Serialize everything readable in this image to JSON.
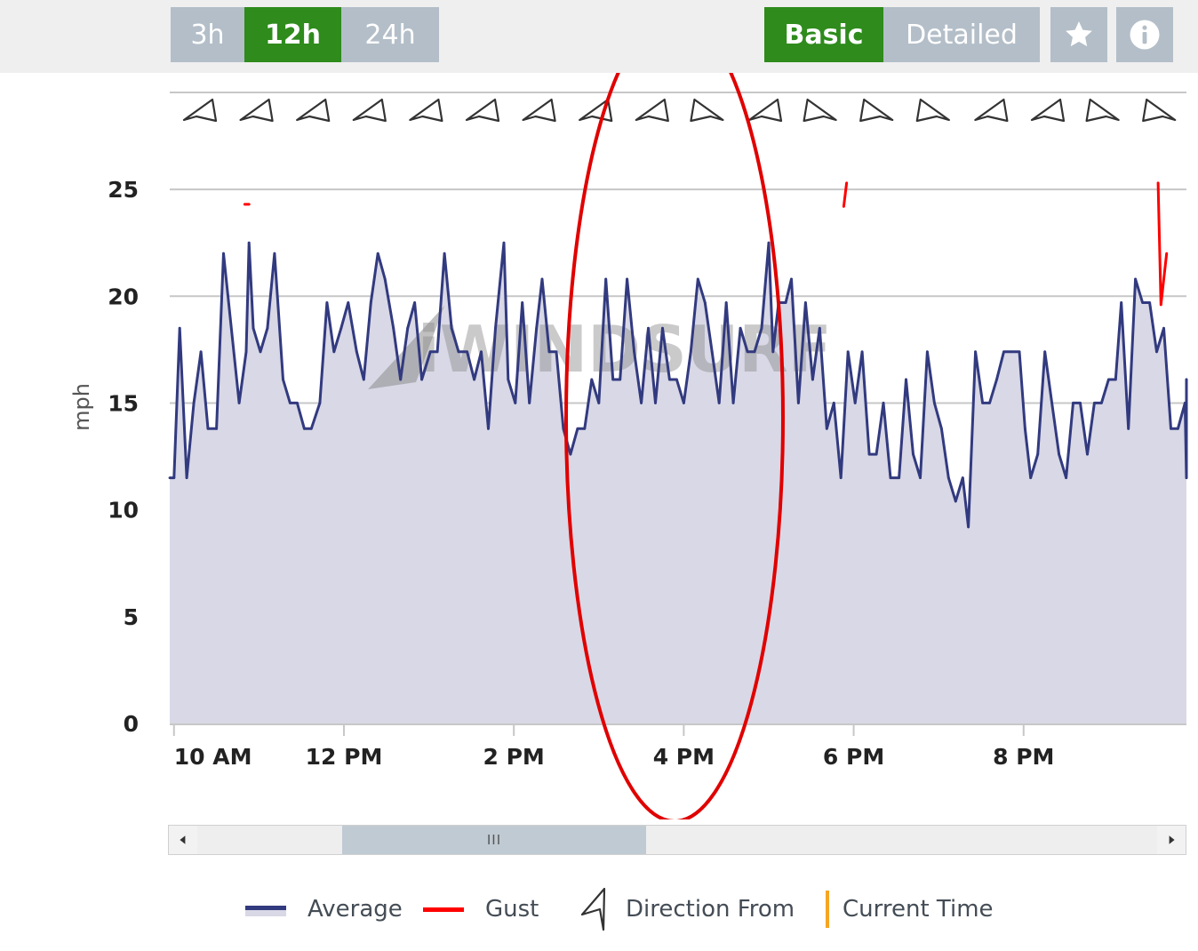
{
  "toolbar": {
    "ranges": [
      "3h",
      "12h",
      "24h"
    ],
    "active_range": "12h",
    "views": [
      "Basic",
      "Detailed"
    ],
    "active_view": "Basic",
    "favorite_icon": "star-icon",
    "info_icon": "info-icon"
  },
  "colors": {
    "active_green": "#2e8b1c",
    "inactive_gray": "#b3bec8",
    "average_line": "#323a7f",
    "area_fill": "#d8d8e6",
    "gust": "#ff0000",
    "current_time": "#f5a623",
    "annotation": "#e00000"
  },
  "watermark": "iWINDSURF",
  "scrollbar": {
    "thumb_grip": "III",
    "left_icon": "arrow-left-icon",
    "right_icon": "arrow-right-icon"
  },
  "legend": {
    "average": "Average",
    "gust": "Gust",
    "direction": "Direction From",
    "current_time": "Current Time"
  },
  "chart_data": {
    "type": "area",
    "ylabel": "mph",
    "y_ticks": [
      0,
      5,
      10,
      15,
      20,
      25
    ],
    "ylim": [
      0,
      27
    ],
    "x_start": "9:57 AM",
    "x_end": "9:55 PM",
    "x_ticks": [
      {
        "time": "10:00 AM",
        "label": "10 AM"
      },
      {
        "time": "12:00 PM",
        "label": "12 PM"
      },
      {
        "time": "2:00 PM",
        "label": "2 PM"
      },
      {
        "time": "4:00 PM",
        "label": "4 PM"
      },
      {
        "time": "6:00 PM",
        "label": "6 PM"
      },
      {
        "time": "8:00 PM",
        "label": "8 PM"
      }
    ],
    "grid": true,
    "series": [
      {
        "name": "Average",
        "points": [
          [
            "9:57 AM",
            11.5
          ],
          [
            "10:00 AM",
            11.5
          ],
          [
            "10:04 AM",
            18.5
          ],
          [
            "10:09 AM",
            11.5
          ],
          [
            "10:14 AM",
            15
          ],
          [
            "10:19 AM",
            17.4
          ],
          [
            "10:24 AM",
            13.8
          ],
          [
            "10:30 AM",
            13.8
          ],
          [
            "10:35 AM",
            22
          ],
          [
            "10:46 AM",
            15
          ],
          [
            "10:51 AM",
            17.4
          ],
          [
            "10:53 AM",
            22.5
          ],
          [
            "10:56 AM",
            18.5
          ],
          [
            "11:01 AM",
            17.4
          ],
          [
            "11:06 AM",
            18.5
          ],
          [
            "11:11 AM",
            22
          ],
          [
            "11:17 AM",
            16.1
          ],
          [
            "11:22 AM",
            15
          ],
          [
            "11:27 AM",
            15
          ],
          [
            "11:32 AM",
            13.8
          ],
          [
            "11:37 AM",
            13.8
          ],
          [
            "11:43 AM",
            15
          ],
          [
            "11:48 AM",
            19.7
          ],
          [
            "11:53 AM",
            17.4
          ],
          [
            "11:58 AM",
            18.5
          ],
          [
            "12:03 PM",
            19.7
          ],
          [
            "12:09 PM",
            17.4
          ],
          [
            "12:14 PM",
            16.1
          ],
          [
            "12:19 PM",
            19.7
          ],
          [
            "12:24 PM",
            22
          ],
          [
            "12:29 PM",
            20.8
          ],
          [
            "12:35 PM",
            18.5
          ],
          [
            "12:40 PM",
            16.1
          ],
          [
            "12:45 PM",
            18.5
          ],
          [
            "12:50 PM",
            19.7
          ],
          [
            "12:55 PM",
            16.1
          ],
          [
            "1:01 PM",
            17.4
          ],
          [
            "1:06 PM",
            17.4
          ],
          [
            "1:11 PM",
            22
          ],
          [
            "1:16 PM",
            18.5
          ],
          [
            "1:21 PM",
            17.4
          ],
          [
            "1:27 PM",
            17.4
          ],
          [
            "1:32 PM",
            16.1
          ],
          [
            "1:37 PM",
            17.4
          ],
          [
            "1:42 PM",
            13.8
          ],
          [
            "1:47 PM",
            18.5
          ],
          [
            "1:53 PM",
            22.5
          ],
          [
            "1:56 PM",
            16.1
          ],
          [
            "2:01 PM",
            15
          ],
          [
            "2:06 PM",
            19.7
          ],
          [
            "2:11 PM",
            15
          ],
          [
            "2:16 PM",
            18.5
          ],
          [
            "2:20 PM",
            20.8
          ],
          [
            "2:25 PM",
            17.4
          ],
          [
            "2:30 PM",
            17.4
          ],
          [
            "2:35 PM",
            13.8
          ],
          [
            "2:40 PM",
            12.6
          ],
          [
            "2:45 PM",
            13.8
          ],
          [
            "2:50 PM",
            13.8
          ],
          [
            "2:55 PM",
            16.1
          ],
          [
            "3:00 PM",
            15
          ],
          [
            "3:05 PM",
            20.8
          ],
          [
            "3:10 PM",
            16.1
          ],
          [
            "3:15 PM",
            16.1
          ],
          [
            "3:20 PM",
            20.8
          ],
          [
            "3:25 PM",
            17.4
          ],
          [
            "3:30 PM",
            15
          ],
          [
            "3:35 PM",
            18.5
          ],
          [
            "3:40 PM",
            15
          ],
          [
            "3:45 PM",
            18.5
          ],
          [
            "3:50 PM",
            16.1
          ],
          [
            "3:55 PM",
            16.1
          ],
          [
            "4:00 PM",
            15
          ],
          [
            "4:05 PM",
            17.4
          ],
          [
            "4:10 PM",
            20.8
          ],
          [
            "4:15 PM",
            19.7
          ],
          [
            "4:20 PM",
            17.4
          ],
          [
            "4:25 PM",
            15
          ],
          [
            "4:30 PM",
            19.7
          ],
          [
            "4:35 PM",
            15
          ],
          [
            "4:40 PM",
            18.5
          ],
          [
            "4:45 PM",
            17.4
          ],
          [
            "4:50 PM",
            17.4
          ],
          [
            "4:55 PM",
            18.5
          ],
          [
            "5:00 PM",
            22.5
          ],
          [
            "5:03 PM",
            17.4
          ],
          [
            "5:07 PM",
            19.7
          ],
          [
            "5:12 PM",
            19.7
          ],
          [
            "5:16 PM",
            20.8
          ],
          [
            "5:21 PM",
            15
          ],
          [
            "5:26 PM",
            19.7
          ],
          [
            "5:31 PM",
            16.1
          ],
          [
            "5:36 PM",
            18.5
          ],
          [
            "5:41 PM",
            13.8
          ],
          [
            "5:46 PM",
            15
          ],
          [
            "5:51 PM",
            11.5
          ],
          [
            "5:56 PM",
            17.4
          ],
          [
            "6:01 PM",
            15
          ],
          [
            "6:06 PM",
            17.4
          ],
          [
            "6:11 PM",
            12.6
          ],
          [
            "6:16 PM",
            12.6
          ],
          [
            "6:21 PM",
            15
          ],
          [
            "6:26 PM",
            11.5
          ],
          [
            "6:32 PM",
            11.5
          ],
          [
            "6:37 PM",
            16.1
          ],
          [
            "6:42 PM",
            12.6
          ],
          [
            "6:47 PM",
            11.5
          ],
          [
            "6:52 PM",
            17.4
          ],
          [
            "6:57 PM",
            15
          ],
          [
            "7:02 PM",
            13.8
          ],
          [
            "7:07 PM",
            11.5
          ],
          [
            "7:12 PM",
            10.4
          ],
          [
            "7:17 PM",
            11.5
          ],
          [
            "7:21 PM",
            9.2
          ],
          [
            "7:26 PM",
            17.4
          ],
          [
            "7:31 PM",
            15
          ],
          [
            "7:36 PM",
            15
          ],
          [
            "7:41 PM",
            16.1
          ],
          [
            "7:46 PM",
            17.4
          ],
          [
            "7:51 PM",
            17.4
          ],
          [
            "7:57 PM",
            17.4
          ],
          [
            "8:01 PM",
            13.8
          ],
          [
            "8:05 PM",
            11.5
          ],
          [
            "8:10 PM",
            12.6
          ],
          [
            "8:15 PM",
            17.4
          ],
          [
            "8:20 PM",
            15
          ],
          [
            "8:25 PM",
            12.6
          ],
          [
            "8:30 PM",
            11.5
          ],
          [
            "8:35 PM",
            15
          ],
          [
            "8:40 PM",
            15
          ],
          [
            "8:45 PM",
            12.6
          ],
          [
            "8:50 PM",
            15
          ],
          [
            "8:55 PM",
            15
          ],
          [
            "9:00 PM",
            16.1
          ],
          [
            "9:05 PM",
            16.1
          ],
          [
            "9:09 PM",
            19.7
          ],
          [
            "9:14 PM",
            13.8
          ],
          [
            "9:19 PM",
            20.8
          ],
          [
            "9:24 PM",
            19.7
          ],
          [
            "9:29 PM",
            19.7
          ],
          [
            "9:34 PM",
            17.4
          ],
          [
            "9:39 PM",
            18.5
          ],
          [
            "9:44 PM",
            13.8
          ],
          [
            "9:49 PM",
            13.8
          ],
          [
            "9:54 PM",
            15
          ],
          [
            "9:59 PM",
            11.5
          ],
          [
            "10:04 PM",
            15
          ],
          [
            "10:08 PM",
            15
          ],
          [
            "10:11 PM",
            16.1
          ],
          [
            "10:14 PM",
            15
          ]
        ]
      },
      {
        "name": "Gust",
        "segments": [
          [
            [
              "10:50 AM",
              24.3
            ],
            [
              "10:53 AM",
              24.3
            ]
          ],
          [
            [
              "5:53 PM",
              24.2
            ],
            [
              "5:55 PM",
              25.3
            ]
          ],
          [
            [
              "9:35 PM",
              25.3
            ],
            [
              "9:37 PM",
              19.6
            ],
            [
              "9:41 PM",
              22
            ]
          ]
        ]
      }
    ],
    "direction_from": [
      "W",
      "W",
      "W",
      "W",
      "W",
      "W",
      "W",
      "W",
      "W",
      "E",
      "W",
      "E",
      "E",
      "E",
      "W",
      "W",
      "E",
      "E"
    ]
  }
}
